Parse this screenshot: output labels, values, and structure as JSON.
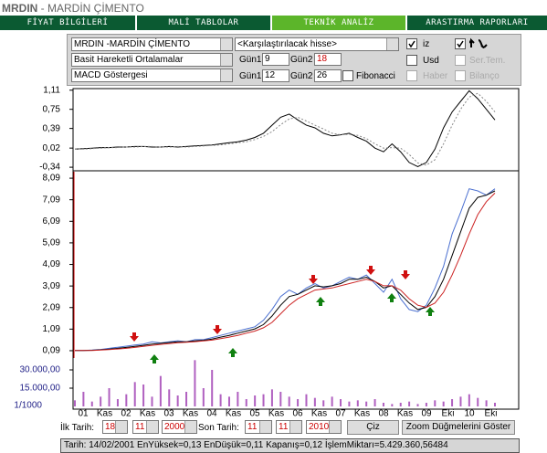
{
  "header": {
    "code": "MRDIN",
    "name": " - MARDİN ÇİMENTO"
  },
  "tabs": [
    "FİYAT BİLGİLERİ",
    "MALİ TABLOLAR",
    "TEKNİK ANALİZ",
    "ARASTIRMA RAPORLARI"
  ],
  "controls": {
    "stock": "MRDIN -MARDİN ÇİMENTO",
    "indicator1": "Basit Hareketli Ortalamalar",
    "indicator2": "MACD Göstergesi",
    "compare": "<Karşılaştırılacak hisse>",
    "trace": "iz",
    "usd": "Usd",
    "series_template": "Ser.Tem.",
    "fibonacci": "Fibonacci",
    "news": "Haber",
    "balance": "Bilanço",
    "row1": {
      "day1_label": "Gün1",
      "day1": "9",
      "day2_label": "Gün2",
      "day2": "18"
    },
    "row2": {
      "day1_label": "Gün1",
      "day1": "12",
      "day2_label": "Gün2",
      "day2": "26"
    }
  },
  "chart_data": [
    {
      "type": "line",
      "ylim": [
        -0.39,
        1.14
      ],
      "yticks": [
        {
          "value": 1.11,
          "label": "1,11"
        },
        {
          "value": 0.75,
          "label": "0,75"
        },
        {
          "value": 0.39,
          "label": "0,39"
        },
        {
          "value": 0.02,
          "label": "0,02"
        },
        {
          "value": -0.34,
          "label": "-0,34"
        }
      ],
      "series": [
        {
          "name": "MACD",
          "color": "#000000",
          "values": [
            0,
            0.01,
            0.02,
            0.03,
            0.03,
            0.04,
            0.04,
            0.05,
            0.05,
            0.04,
            0.04,
            0.05,
            0.04,
            0.05,
            0.06,
            0.07,
            0.08,
            0.1,
            0.12,
            0.14,
            0.17,
            0.22,
            0.3,
            0.45,
            0.6,
            0.66,
            0.55,
            0.45,
            0.4,
            0.3,
            0.25,
            0.27,
            0.3,
            0.22,
            0.15,
            0.02,
            -0.05,
            0.1,
            -0.05,
            -0.25,
            -0.33,
            -0.25,
            0,
            0.4,
            0.7,
            0.9,
            1.1,
            0.95,
            0.75,
            0.55
          ]
        },
        {
          "name": "Sinyal",
          "color": "#888888",
          "values": [
            0,
            0,
            0.01,
            0.02,
            0.03,
            0.03,
            0.04,
            0.04,
            0.05,
            0.05,
            0.04,
            0.04,
            0.05,
            0.04,
            0.05,
            0.06,
            0.07,
            0.08,
            0.1,
            0.12,
            0.14,
            0.18,
            0.24,
            0.33,
            0.46,
            0.57,
            0.6,
            0.53,
            0.45,
            0.38,
            0.3,
            0.27,
            0.28,
            0.26,
            0.2,
            0.1,
            0.02,
            0.03,
            0.02,
            -0.1,
            -0.26,
            -0.3,
            -0.2,
            0.1,
            0.45,
            0.75,
            0.98,
            1.05,
            0.9,
            0.7
          ]
        }
      ]
    },
    {
      "type": "line",
      "ylim": [
        -0.25,
        8.39
      ],
      "yticks": [
        {
          "value": 8.09,
          "label": "8,09"
        },
        {
          "value": 7.09,
          "label": "7,09"
        },
        {
          "value": 6.09,
          "label": "6,09"
        },
        {
          "value": 5.09,
          "label": "5,09"
        },
        {
          "value": 4.09,
          "label": "4,09"
        },
        {
          "value": 3.09,
          "label": "3,09"
        },
        {
          "value": 2.09,
          "label": "2,09"
        },
        {
          "value": 1.09,
          "label": "1,09"
        },
        {
          "value": 0.09,
          "label": "0,09"
        }
      ],
      "series": [
        {
          "name": "Fiyat",
          "color": "#4a6fd0",
          "values": [
            0.1,
            0.1,
            0.12,
            0.15,
            0.2,
            0.25,
            0.3,
            0.35,
            0.4,
            0.5,
            0.45,
            0.5,
            0.55,
            0.5,
            0.6,
            0.6,
            0.7,
            0.8,
            0.9,
            1,
            1.1,
            1.2,
            1.5,
            2,
            2.6,
            2.9,
            2.7,
            3,
            3.2,
            3,
            3.1,
            3.3,
            3.5,
            3.4,
            3.6,
            3.2,
            2.8,
            3.4,
            2.5,
            2,
            1.9,
            2.2,
            3,
            4,
            5.5,
            6.5,
            7.6,
            7.5,
            7.3,
            7.6
          ]
        },
        {
          "name": "Ort9",
          "color": "#000000",
          "values": [
            0.1,
            0.1,
            0.11,
            0.13,
            0.16,
            0.2,
            0.24,
            0.29,
            0.34,
            0.4,
            0.43,
            0.47,
            0.5,
            0.5,
            0.54,
            0.57,
            0.63,
            0.72,
            0.8,
            0.9,
            1,
            1.1,
            1.3,
            1.7,
            2.2,
            2.6,
            2.7,
            2.9,
            3.1,
            3.05,
            3.1,
            3.2,
            3.4,
            3.4,
            3.5,
            3.3,
            3,
            3.1,
            2.7,
            2.3,
            2,
            2.1,
            2.6,
            3.4,
            4.5,
            5.6,
            6.7,
            7.2,
            7.3,
            7.5
          ]
        },
        {
          "name": "Ort18",
          "color": "#cc2222",
          "values": [
            0.1,
            0.1,
            0.1,
            0.12,
            0.14,
            0.17,
            0.2,
            0.24,
            0.29,
            0.34,
            0.38,
            0.42,
            0.46,
            0.48,
            0.51,
            0.54,
            0.58,
            0.65,
            0.72,
            0.8,
            0.9,
            1,
            1.15,
            1.4,
            1.8,
            2.2,
            2.5,
            2.7,
            2.9,
            2.95,
            3,
            3.1,
            3.2,
            3.3,
            3.4,
            3.3,
            3.1,
            3.1,
            2.9,
            2.5,
            2.2,
            2.1,
            2.3,
            2.8,
            3.6,
            4.5,
            5.5,
            6.4,
            7,
            7.4
          ]
        }
      ],
      "xtick_labels": [
        "01",
        "Kas",
        "02",
        "Kas",
        "03",
        "Kas",
        "04",
        "Kas",
        "05",
        "Kas",
        "06",
        "Kas",
        "07",
        "Kas",
        "08",
        "Kas",
        "09",
        "Eki",
        "10",
        "Eki"
      ]
    },
    {
      "type": "bar",
      "ylim": [
        -2250,
        39750
      ],
      "unit_label": "1/1000",
      "yticks": [
        {
          "value": 30000,
          "label": "30.000,00"
        },
        {
          "value": 15000,
          "label": "15.000,00"
        }
      ],
      "color": "#b060c0",
      "values": [
        5000,
        12000,
        4000,
        8000,
        15000,
        6000,
        10000,
        20000,
        18000,
        8000,
        25000,
        14000,
        9000,
        12000,
        38000,
        15000,
        30000,
        10000,
        8000,
        12000,
        6000,
        9000,
        10000,
        14000,
        12000,
        8000,
        6000,
        10000,
        7000,
        5000,
        8000,
        6000,
        4000,
        5000,
        4000,
        6000,
        3000,
        2000,
        3000,
        4000,
        2000,
        3000,
        5000,
        4000,
        6000,
        8000,
        10000,
        7000,
        5000,
        3000
      ]
    }
  ],
  "footer": {
    "start_label": "İlk Tarih:",
    "start": [
      "18",
      "11",
      "2000"
    ],
    "end_label": "Son Tarih:",
    "end": [
      "11",
      "11",
      "2010"
    ],
    "draw_button": "Çiz",
    "zoom_button": "Zoom Düğmelerini Göster",
    "status": "Tarih: 14/02/2001 EnYüksek=0,13 EnDüşük=0,11 Kapanış=0,12 İşlemMiktarı=5.429.360,56484"
  }
}
